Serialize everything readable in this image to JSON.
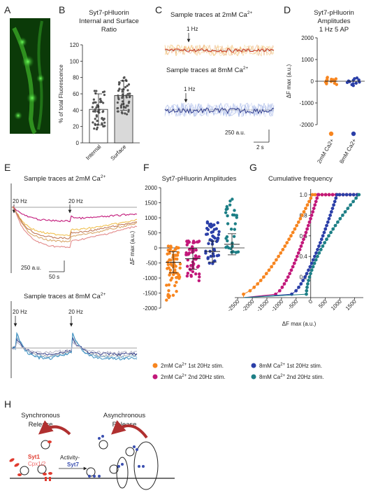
{
  "colors": {
    "orange": "#f7851f",
    "magenta": "#c2187a",
    "blue": "#2b3fa8",
    "teal": "#1d7f86",
    "red_trace": "#c8341e",
    "gray_bar": "#d9d9d9",
    "syt1_red": "#e03a2e",
    "cpx_pink": "#ef6b6b",
    "syt7_blue": "#3a4fb0",
    "arc_red": "#b03030"
  },
  "panels": {
    "A": {
      "label": "A"
    },
    "B": {
      "label": "B",
      "title_line1": "Syt7-pHluorin",
      "title_line2": "Internal and Surface",
      "title_line3": "Ratio"
    },
    "C": {
      "label": "C",
      "trace1_title": "Sample traces at 2mM Ca",
      "trace2_title": "Sample traces at 8mM Ca",
      "stim1": "1 Hz",
      "stim2": "1 Hz",
      "scale_y": "250 a.u.",
      "scale_x": "2 s",
      "sup": "2+"
    },
    "D": {
      "label": "D",
      "title_line1": "Syt7-pHluorin",
      "title_line2": "Amplitudes",
      "title_line3": "1 Hz 5 AP"
    },
    "E": {
      "label": "E",
      "trace1_title": "Sample traces at 2mM Ca",
      "trace2_title": "Sample traces at 8mM Ca",
      "stim_a": "20 Hz",
      "stim_b": "20 Hz",
      "stim_c": "20 Hz",
      "stim_d": "20 Hz",
      "scale_y": "250 a.u.",
      "scale_x": "50 s",
      "sup": "2+"
    },
    "F": {
      "label": "F",
      "title": "Syt7-pHluorin Amplitudes"
    },
    "G": {
      "label": "G",
      "title": "Cumulative frequency"
    },
    "H": {
      "label": "H",
      "sync_line1": "Synchronous",
      "sync_line2": "Release",
      "async_line1": "Asynchronous",
      "async_line2": "Release",
      "syt1": "Syt1",
      "cpx": "Cpx1/2",
      "activity": "Activity-",
      "syt7": "Syt7"
    }
  },
  "legend": [
    {
      "text": "2mM Ca",
      "sup": "2+",
      "suffix": " 1st 20Hz stim.",
      "color": "#f7851f"
    },
    {
      "text": "2mM Ca",
      "sup": "2+",
      "suffix": " 2nd 20Hz stim.",
      "color": "#c2187a"
    },
    {
      "text": "8mM Ca",
      "sup": "2+",
      "suffix": " 1st 20Hz stim.",
      "color": "#2b3fa8"
    },
    {
      "text": "8mM Ca",
      "sup": "2+",
      "suffix": " 2nd 20Hz stim.",
      "color": "#1d7f86"
    }
  ],
  "chart_data": [
    {
      "panel": "B",
      "type": "bar",
      "categories": [
        "Internal",
        "Surface"
      ],
      "values": [
        41,
        58
      ],
      "sd": [
        19,
        18
      ],
      "ylabel": "% of total Fluorescence",
      "ylim": [
        0,
        120
      ],
      "yticks": [
        0,
        20,
        40,
        60,
        80,
        100,
        120
      ]
    },
    {
      "panel": "D",
      "type": "scatter",
      "categories": [
        "2mM Ca2+",
        "8mM Ca2+"
      ],
      "series": [
        {
          "values": [
            60,
            -40,
            110,
            -120,
            20,
            180,
            -90,
            40,
            -10,
            90,
            -60,
            150,
            0,
            -150,
            70
          ]
        },
        {
          "values": [
            -60,
            40,
            -160,
            120,
            -20,
            -90,
            60,
            -200,
            10,
            -110,
            150,
            -40
          ]
        }
      ],
      "ylabel": "ΔF max (a.u.)",
      "ylim": [
        -2000,
        2000
      ],
      "yticks": [
        -2000,
        -1000,
        0,
        1000,
        2000
      ]
    },
    {
      "panel": "F",
      "type": "scatter",
      "categories": [
        "2mM 1st",
        "2mM 2nd",
        "8mM 1st",
        "8mM 2nd"
      ],
      "means": [
        -480,
        -360,
        -120,
        120
      ],
      "ylabel": "ΔF max (a.u.)",
      "ylim": [
        -2000,
        2000
      ],
      "yticks": [
        -2000,
        -1500,
        -1000,
        -500,
        0,
        500,
        1000,
        1500,
        2000
      ]
    },
    {
      "panel": "G",
      "type": "line",
      "xlabel": "ΔF max (a.u.)",
      "xlim": [
        -2600,
        1800
      ],
      "ylim": [
        0,
        1.0
      ],
      "xticks": [
        -2500,
        -2000,
        -1500,
        -1000,
        -500,
        0,
        500,
        1000,
        1500
      ],
      "yticks": [
        0.2,
        0.4,
        0.6,
        0.8,
        1.0
      ]
    }
  ]
}
